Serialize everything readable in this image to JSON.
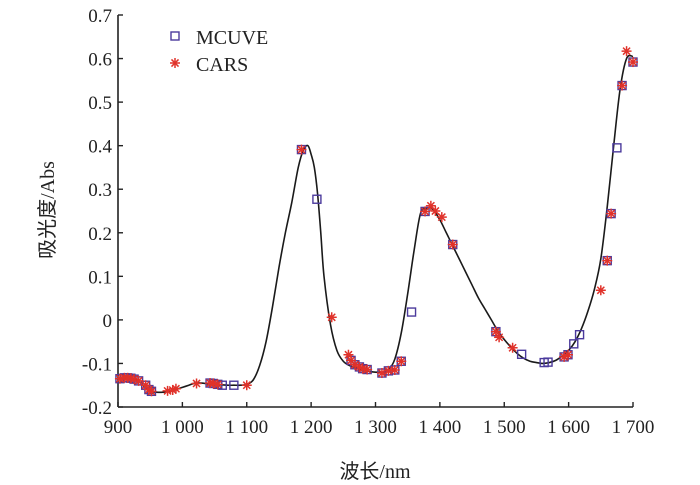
{
  "chart_data": {
    "type": "line",
    "title": "",
    "xlabel": "波长/nm",
    "ylabel": "吸光度/Abs",
    "xlim": [
      900,
      1700
    ],
    "ylim": [
      -0.2,
      0.7
    ],
    "xticks": [
      900,
      1000,
      1100,
      1200,
      1300,
      1400,
      1500,
      1600,
      1700
    ],
    "xtick_labels": [
      "900",
      "1 000",
      "1 100",
      "1 200",
      "1 300",
      "1 400",
      "1 500",
      "1 600",
      "1 700"
    ],
    "yticks": [
      -0.2,
      -0.1,
      0,
      0.1,
      0.2,
      0.3,
      0.4,
      0.5,
      0.6,
      0.7
    ],
    "ytick_labels": [
      "-0.2",
      "-0.1",
      "0",
      "0.1",
      "0.2",
      "0.3",
      "0.4",
      "0.5",
      "0.6",
      "0.7"
    ],
    "grid": false,
    "legend": {
      "position": "top-left",
      "entries": [
        "MCUVE",
        "CARS"
      ]
    },
    "colors": {
      "curve": "#1a1a1a",
      "mcuve": "#4b3a9c",
      "cars": "#e0322a",
      "axis": "#222222"
    },
    "spectrum": {
      "x": [
        900,
        910,
        920,
        930,
        940,
        950,
        960,
        970,
        980,
        990,
        1000,
        1010,
        1020,
        1030,
        1040,
        1050,
        1060,
        1070,
        1080,
        1090,
        1100,
        1110,
        1120,
        1130,
        1140,
        1150,
        1160,
        1170,
        1180,
        1188,
        1195,
        1200,
        1205,
        1210,
        1215,
        1220,
        1230,
        1240,
        1250,
        1260,
        1270,
        1280,
        1290,
        1300,
        1310,
        1320,
        1330,
        1340,
        1350,
        1360,
        1370,
        1380,
        1385,
        1390,
        1400,
        1410,
        1420,
        1430,
        1440,
        1450,
        1460,
        1470,
        1480,
        1490,
        1500,
        1510,
        1520,
        1530,
        1540,
        1550,
        1560,
        1570,
        1580,
        1590,
        1600,
        1610,
        1620,
        1630,
        1640,
        1650,
        1660,
        1670,
        1680,
        1690,
        1700
      ],
      "y": [
        -0.135,
        -0.134,
        -0.134,
        -0.138,
        -0.152,
        -0.163,
        -0.166,
        -0.166,
        -0.164,
        -0.16,
        -0.155,
        -0.15,
        -0.145,
        -0.145,
        -0.147,
        -0.148,
        -0.149,
        -0.15,
        -0.15,
        -0.15,
        -0.148,
        -0.138,
        -0.105,
        -0.05,
        0.03,
        0.12,
        0.2,
        0.27,
        0.35,
        0.39,
        0.4,
        0.38,
        0.35,
        0.29,
        0.2,
        0.1,
        -0.01,
        -0.07,
        -0.095,
        -0.105,
        -0.11,
        -0.115,
        -0.118,
        -0.12,
        -0.12,
        -0.115,
        -0.09,
        -0.03,
        0.06,
        0.16,
        0.245,
        0.255,
        0.258,
        0.252,
        0.23,
        0.2,
        0.17,
        0.14,
        0.11,
        0.08,
        0.05,
        0.025,
        0.0,
        -0.025,
        -0.045,
        -0.062,
        -0.077,
        -0.088,
        -0.095,
        -0.098,
        -0.1,
        -0.098,
        -0.093,
        -0.083,
        -0.07,
        -0.05,
        -0.02,
        0.02,
        0.07,
        0.14,
        0.26,
        0.4,
        0.53,
        0.6,
        0.605
      ]
    },
    "series": [
      {
        "name": "MCUVE",
        "marker": "square",
        "x": [
          903,
          910,
          915,
          920,
          925,
          932,
          943,
          948,
          952,
          1043,
          1048,
          1055,
          1062,
          1080,
          1185,
          1209,
          1262,
          1268,
          1275,
          1280,
          1287,
          1310,
          1320,
          1330,
          1340,
          1356,
          1377,
          1420,
          1487,
          1527,
          1562,
          1568,
          1593,
          1599,
          1608,
          1617,
          1660,
          1666,
          1675,
          1683,
          1700
        ],
        "y": [
          -0.135,
          -0.133,
          -0.133,
          -0.134,
          -0.136,
          -0.14,
          -0.15,
          -0.16,
          -0.164,
          -0.145,
          -0.146,
          -0.148,
          -0.15,
          -0.15,
          0.391,
          0.277,
          -0.093,
          -0.103,
          -0.108,
          -0.112,
          -0.114,
          -0.122,
          -0.117,
          -0.115,
          -0.095,
          0.018,
          0.249,
          0.173,
          -0.027,
          -0.079,
          -0.098,
          -0.097,
          -0.085,
          -0.08,
          -0.055,
          -0.034,
          0.136,
          0.244,
          0.395,
          0.538,
          0.592
        ]
      },
      {
        "name": "CARS",
        "marker": "asterisk",
        "x": [
          903,
          910,
          915,
          920,
          925,
          932,
          943,
          948,
          952,
          977,
          985,
          990,
          1022,
          1043,
          1048,
          1055,
          1100,
          1185,
          1232,
          1258,
          1262,
          1268,
          1275,
          1280,
          1287,
          1310,
          1320,
          1330,
          1340,
          1377,
          1386,
          1393,
          1403,
          1420,
          1487,
          1492,
          1513,
          1593,
          1599,
          1650,
          1660,
          1666,
          1683,
          1690,
          1700
        ],
        "y": [
          -0.135,
          -0.133,
          -0.133,
          -0.134,
          -0.136,
          -0.14,
          -0.15,
          -0.16,
          -0.164,
          -0.163,
          -0.161,
          -0.158,
          -0.146,
          -0.145,
          -0.146,
          -0.148,
          -0.15,
          0.391,
          0.006,
          -0.08,
          -0.093,
          -0.103,
          -0.108,
          -0.112,
          -0.114,
          -0.122,
          -0.117,
          -0.115,
          -0.095,
          0.249,
          0.262,
          0.25,
          0.236,
          0.173,
          -0.027,
          -0.04,
          -0.064,
          -0.085,
          -0.08,
          0.068,
          0.136,
          0.244,
          0.538,
          0.617,
          0.592
        ]
      }
    ]
  }
}
